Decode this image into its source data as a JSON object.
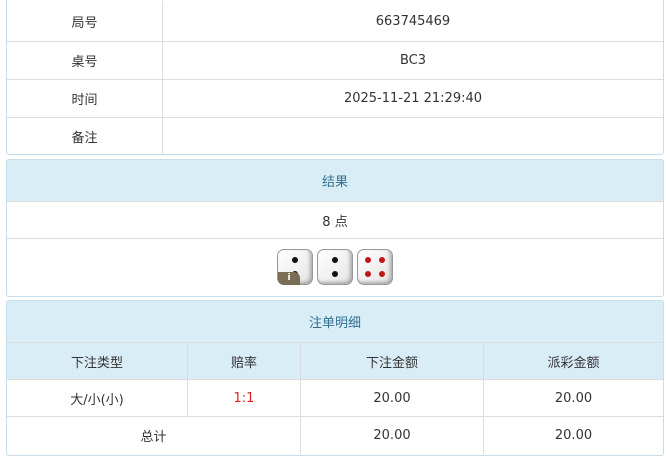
{
  "info": {
    "rows": [
      {
        "label": "局号",
        "value": "663745469"
      },
      {
        "label": "桌号",
        "value": "BC3"
      },
      {
        "label": "时间",
        "value": "2025-11-21 21:29:40"
      },
      {
        "label": "备注",
        "value": ""
      }
    ]
  },
  "result": {
    "title": "结果",
    "points": "8 点",
    "dice": [
      2,
      2,
      4
    ],
    "info_badge": "i"
  },
  "bets": {
    "title": "注单明细",
    "headers": [
      "下注类型",
      "赔率",
      "下注金额",
      "派彩金额"
    ],
    "rows": [
      {
        "type": "大/小(小)",
        "odds": "1:1",
        "amount": "20.00",
        "payout": "20.00"
      }
    ],
    "total": {
      "label": "总计",
      "amount": "20.00",
      "payout": "20.00"
    }
  },
  "colors": {
    "header_bg": "#d9edf7",
    "header_text": "#31708f",
    "odds": "#e02020"
  }
}
